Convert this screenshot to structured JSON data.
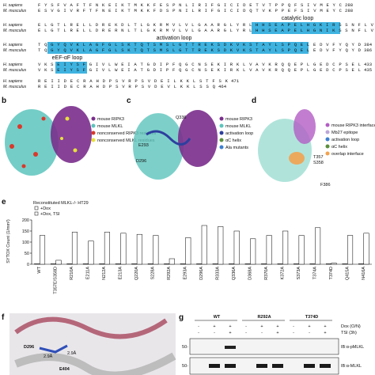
{
  "alignment": {
    "rows": [
      {
        "species": "H. sapiens",
        "sequence": "FYSFVAFTFNKEIKTMKKFESPNLIRIFGICIDETVTPPQFSIVMEYC",
        "end": "288"
      },
      {
        "species": "M. musculus",
        "sequence": "ESVGIVRFTFNEIKTMKKFDSPNILRIFGICIDQTVKPPEFSIVMEYC",
        "end": "288"
      },
      {
        "species": "H. sapiens",
        "sequence": "ELGTLRELLDREKDLTLGKRMVLVLGAARGLYRLHHSEAPELHGKIRSSNFLV",
        "end": "335"
      },
      {
        "species": "M. musculus",
        "sequence": "ELGTLRELLDRERNLTLGKRMVLVLGAARGLYRLHHSEAPELHGNIKSSNFLV",
        "end": "335"
      },
      {
        "species": "H. sapiens",
        "sequence": "TQGYQVKLAGFGLSKTQTSMSLGTTREKSDKVKSTAYLSPQELEDVFYQYD",
        "end": "384"
      },
      {
        "species": "M. musculus",
        "sequence": "TQGYQVKLAGFGLSKTQTSMSLGTTREKSDKVKSTAYLSPQELEDVFYQYD",
        "end": "386"
      },
      {
        "species": "H. sapiens",
        "sequence": "VKSEIYSFGIVLWEIATGDIPFQGCNSEKIRKLVAVKRQQEPLGEDCPSEL",
        "end": "433"
      },
      {
        "species": "M. musculus",
        "sequence": "VKSEIYSFGIVLWEIATGDIPFQGCNSEKIRKLVAVKRQQEPLGEDCPSEL",
        "end": "435"
      },
      {
        "species": "H. sapiens",
        "sequence": "REIIDECRAHDPSVRPSVDEILKKLSTFSK",
        "end": "471"
      },
      {
        "species": "M. musculus",
        "sequence": "REIIDECRAHDPSVRPSVDEVLKKLSSQ",
        "end": "464"
      }
    ],
    "annotations": [
      "catalytic loop",
      "activation loop",
      "eEF-αF loop"
    ]
  },
  "panel_b": {
    "label": "b",
    "legend": [
      "mouse RIPK3",
      "mouse MLKL",
      "nonconserved RIPK3 residues",
      "nonconserved MLKL residues"
    ]
  },
  "panel_c": {
    "label": "c",
    "legend": [
      "mouse RIPK3",
      "mouse MLKL",
      "activation loop",
      "αC helix",
      "Ala mutants"
    ],
    "residues": [
      "Q336",
      "E293",
      "D296"
    ]
  },
  "panel_d": {
    "label": "d",
    "legend": [
      "mouse RIPK3 interface",
      "Mb27 epitope",
      "activation loop",
      "αC helix",
      "overlap interface"
    ],
    "residues": [
      "T357",
      "S358",
      "F386"
    ]
  },
  "chart_data": {
    "type": "bar",
    "label": "e",
    "title": "Reconstituted MLKL-/- HT29",
    "ylabel": "SYTOX Count (1/mm²)",
    "categories": [
      "WT",
      "T357E/S358D",
      "R210A",
      "E211A",
      "N212A",
      "E213A",
      "Q220A",
      "S228A",
      "R292A",
      "E293A",
      "D296A",
      "R333A",
      "Q336A",
      "D368A",
      "R370A",
      "K372A",
      "S373A",
      "T374A",
      "T374D",
      "Q415A",
      "N416A"
    ],
    "series": [
      {
        "name": "+Dox",
        "color": "#ffffff",
        "values": [
          3,
          2,
          2,
          2,
          2,
          2,
          2,
          2,
          2,
          2,
          2,
          2,
          2,
          2,
          2,
          2,
          2,
          2,
          2,
          2,
          2
        ]
      },
      {
        "name": "+Dox, TSI",
        "color": "#ffffff",
        "values": [
          130,
          18,
          145,
          105,
          145,
          140,
          135,
          130,
          25,
          120,
          175,
          170,
          150,
          115,
          130,
          150,
          130,
          165,
          5,
          130,
          140
        ]
      }
    ],
    "ylim": [
      0,
      200
    ],
    "yticks": [
      0,
      50,
      100,
      150,
      200
    ]
  },
  "panel_f": {
    "label": "f",
    "residues": [
      "D296",
      "E404"
    ],
    "distances": [
      "2.9Å",
      "2.9Å"
    ]
  },
  "panel_g": {
    "label": "g",
    "groups": [
      "WT",
      "R292A",
      "T374D"
    ],
    "rows": [
      "Dox (O/N)",
      "TSI (3h)"
    ],
    "dox": [
      "-",
      "+",
      "+",
      "-",
      "+",
      "+",
      "-",
      "+",
      "+"
    ],
    "tsi": [
      "-",
      "-",
      "+",
      "-",
      "-",
      "+",
      "-",
      "-",
      "+"
    ],
    "markers": [
      "50-",
      "50-"
    ],
    "blots": [
      "IB:α-pMLKL",
      "IB:α-MLKL"
    ]
  }
}
